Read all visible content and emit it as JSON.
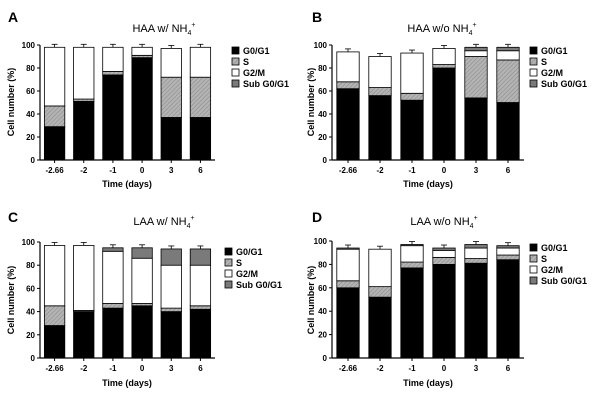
{
  "figure": {
    "colors": {
      "G0/G1": "#000000",
      "S": "#a8a8a8",
      "G2/M": "#ffffff",
      "Sub G0/G1": "#7a7a7a"
    },
    "hatched_series": "S"
  },
  "chart_data": [
    {
      "panel": "A",
      "type": "bar",
      "stacked": true,
      "title_main": "HAA w/ NH",
      "title_sub": "4",
      "title_sup": "+",
      "xlabel": "Time (days)",
      "ylabel": "Cell number (%)",
      "ylim": [
        0,
        100
      ],
      "yticks": [
        "0",
        "20",
        "40",
        "60",
        "80",
        "100"
      ],
      "categories": [
        "-2.66",
        "-2",
        "-1",
        "0",
        "3",
        "6"
      ],
      "legend": [
        "G0/G1",
        "S",
        "G2/M",
        "Sub G0/G1"
      ],
      "series": [
        {
          "name": "G0/G1",
          "values": [
            29,
            51,
            74,
            89,
            37,
            37
          ]
        },
        {
          "name": "S",
          "values": [
            18,
            2,
            3,
            2,
            35,
            35
          ]
        },
        {
          "name": "G2/M",
          "values": [
            51,
            45,
            21,
            7,
            25,
            26
          ]
        },
        {
          "name": "Sub G0/G1",
          "values": [
            0,
            0,
            0,
            0,
            0,
            0
          ]
        }
      ]
    },
    {
      "panel": "B",
      "type": "bar",
      "stacked": true,
      "title_main": "HAA w/o NH",
      "title_sub": "4",
      "title_sup": "+",
      "xlabel": "Time (days)",
      "ylabel": "Cell number (%)",
      "ylim": [
        0,
        100
      ],
      "yticks": [
        "0",
        "20",
        "40",
        "60",
        "80",
        "100"
      ],
      "categories": [
        "-2.66",
        "-2",
        "-1",
        "0",
        "3",
        "6"
      ],
      "legend": [
        "G0/G1",
        "S",
        "G2/M",
        "Sub G0/G1"
      ],
      "series": [
        {
          "name": "G0/G1",
          "values": [
            62,
            56,
            52,
            80,
            54,
            50
          ]
        },
        {
          "name": "S",
          "values": [
            6,
            7,
            6,
            3,
            36,
            37
          ]
        },
        {
          "name": "G2/M",
          "values": [
            26,
            27,
            35,
            14,
            5,
            8
          ]
        },
        {
          "name": "Sub G0/G1",
          "values": [
            0,
            0,
            0,
            0,
            3,
            3
          ]
        }
      ]
    },
    {
      "panel": "C",
      "type": "bar",
      "stacked": true,
      "title_main": "LAA w/ NH",
      "title_sub": "4",
      "title_sup": "+",
      "xlabel": "Time (days)",
      "ylabel": "Cell number (%)",
      "ylim": [
        0,
        100
      ],
      "yticks": [
        "0",
        "20",
        "40",
        "60",
        "80",
        "100"
      ],
      "categories": [
        "-2.66",
        "-2",
        "-1",
        "0",
        "3",
        "6"
      ],
      "legend": [
        "G0/G1",
        "S",
        "G2/M",
        "Sub G0/G1"
      ],
      "series": [
        {
          "name": "G0/G1",
          "values": [
            28,
            40,
            43,
            45,
            40,
            42
          ]
        },
        {
          "name": "S",
          "values": [
            17,
            1,
            4,
            2,
            3,
            3
          ]
        },
        {
          "name": "G2/M",
          "values": [
            52,
            56,
            45,
            39,
            37,
            35
          ]
        },
        {
          "name": "Sub G0/G1",
          "values": [
            0,
            0,
            3,
            9,
            14,
            14
          ]
        }
      ]
    },
    {
      "panel": "D",
      "type": "bar",
      "stacked": true,
      "title_main": "LAA w/o NH",
      "title_sub": "4",
      "title_sup": "+",
      "xlabel": "Time (days)",
      "ylabel": "Cell number (%)",
      "ylim": [
        0,
        100
      ],
      "yticks": [
        "0",
        "20",
        "40",
        "60",
        "80",
        "100"
      ],
      "categories": [
        "-2.66",
        "-2",
        "-1",
        "0",
        "3",
        "6"
      ],
      "legend": [
        "G0/G1",
        "S",
        "G2/M",
        "Sub G0/G1"
      ],
      "series": [
        {
          "name": "G0/G1",
          "values": [
            60,
            52,
            77,
            80,
            81,
            84
          ]
        },
        {
          "name": "S",
          "values": [
            6,
            9,
            5,
            6,
            4,
            4
          ]
        },
        {
          "name": "G2/M",
          "values": [
            27,
            32,
            14,
            6,
            9,
            6
          ]
        },
        {
          "name": "Sub G0/G1",
          "values": [
            1,
            0,
            1,
            2,
            3,
            2
          ]
        }
      ]
    }
  ]
}
